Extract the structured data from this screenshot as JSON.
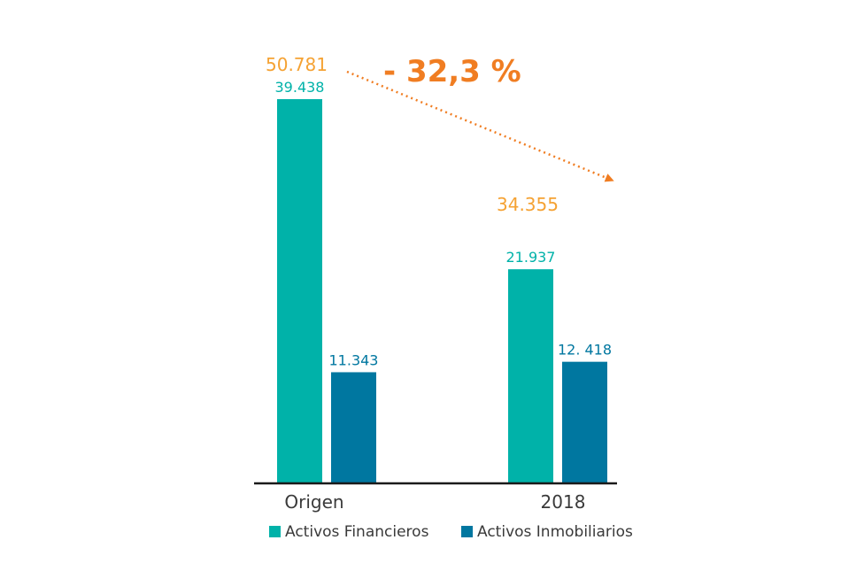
{
  "colors": {
    "financieros": "#00b2a9",
    "inmobiliarios": "#0077a0",
    "total": "#f5a233",
    "arrow": "#f07d22",
    "axis": "#1a1a1a",
    "category_text": "#3a3a3a"
  },
  "chart_data": {
    "type": "bar",
    "categories": [
      "Origen",
      "2018"
    ],
    "series": [
      {
        "name": "Activos Financieros",
        "values": [
          39438,
          21937
        ],
        "labels": [
          "39.438",
          "21.937"
        ]
      },
      {
        "name": "Activos Inmobiliarios",
        "values": [
          11343,
          12418
        ],
        "labels": [
          "11.343",
          "12. 418"
        ]
      }
    ],
    "totals": {
      "values": [
        50781,
        34355
      ],
      "labels": [
        "50.781",
        "34.355"
      ]
    },
    "annotation": "- 32,3 %",
    "ylim": [
      0,
      42000
    ],
    "legend": "bottom"
  }
}
